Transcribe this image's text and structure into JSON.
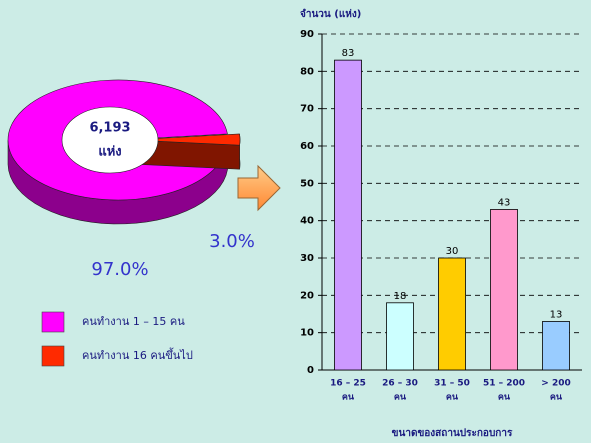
{
  "chart_data": [
    {
      "type": "pie",
      "center_text": [
        "6,193",
        "แห่ง"
      ],
      "series": [
        {
          "name": "คนทำงาน 1 – 15 คน",
          "color": "#ff00ff"
        },
        {
          "name": "คนทำงาน 16 คนขึ้นไป",
          "color": "#ff2a00"
        }
      ],
      "values": [
        97.0,
        3.0
      ],
      "value_labels": [
        "97.0%",
        "3.0%"
      ]
    },
    {
      "type": "bar",
      "y_label": "จำนวน (แห่ง)",
      "x_label": "ขนาดของสถานประกอบการ",
      "categories": [
        [
          "16 – 25",
          "คน"
        ],
        [
          "26 – 30",
          "คน"
        ],
        [
          "31 – 50",
          "คน"
        ],
        [
          "51 – 200",
          "คน"
        ],
        [
          "> 200",
          "คน"
        ]
      ],
      "values": [
        83,
        18,
        30,
        43,
        13
      ],
      "colors": [
        "#cc99ff",
        "#ccffff",
        "#ffcc00",
        "#ff99cc",
        "#99ccff"
      ],
      "ylim": [
        0,
        90
      ],
      "yticks": [
        0,
        10,
        20,
        30,
        40,
        50,
        60,
        70,
        80,
        90
      ],
      "grid": true
    }
  ]
}
